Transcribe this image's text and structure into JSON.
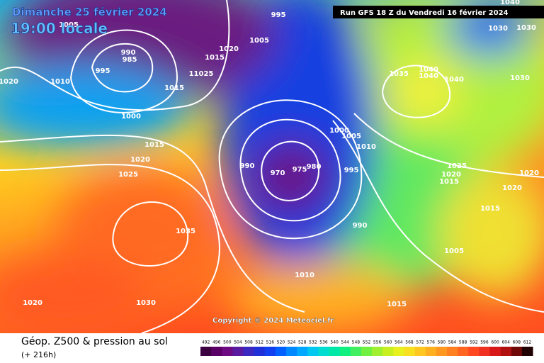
{
  "header": {
    "date": "Dimanche 25 février 2024",
    "time": "19:00 locale",
    "run": "Run GFS 18 Z du Vendredi 16 février 2024"
  },
  "isobar_labels": [
    "1005",
    "990",
    "985",
    "995",
    "1010",
    "1020",
    "1000",
    "1015",
    "1015",
    "1020",
    "11025",
    "1005",
    "995",
    "1040",
    "1030",
    "1030",
    "1035",
    "1040",
    "1040",
    "1040",
    "1030",
    "1015",
    "1020",
    "1025",
    "990",
    "970",
    "975",
    "980",
    "1000",
    "1005",
    "1010",
    "995",
    "1025",
    "1020",
    "1015",
    "1020",
    "1020",
    "1015",
    "990",
    "1035",
    "1005",
    "1010",
    "1020",
    "1030",
    "1015"
  ],
  "copyright": "Copyright © 2024 Meteociel.fr",
  "footer": {
    "title": "Géop. Z500 & pression au sol",
    "lead": "(+ 216h)"
  },
  "legend": {
    "labels": [
      "492",
      "496",
      "500",
      "504",
      "508",
      "512",
      "516",
      "520",
      "524",
      "528",
      "532",
      "536",
      "540",
      "544",
      "548",
      "552",
      "556",
      "560",
      "564",
      "568",
      "572",
      "576",
      "580",
      "584",
      "588",
      "592",
      "596",
      "600",
      "604",
      "608",
      "612"
    ],
    "colors": [
      "#3c0040",
      "#5a0066",
      "#6e0a82",
      "#5a1aa0",
      "#3a28c0",
      "#2030d8",
      "#1040f0",
      "#0060ff",
      "#0088ff",
      "#00a8ff",
      "#00c8f0",
      "#00dcd0",
      "#00e8a8",
      "#10f080",
      "#40f060",
      "#70f040",
      "#a0f030",
      "#c8f020",
      "#e8f020",
      "#f8e020",
      "#ffc820",
      "#ffb020",
      "#ff9820",
      "#ff8020",
      "#ff6420",
      "#ff4820",
      "#f03020",
      "#d81818",
      "#b01010",
      "#700808",
      "#200000"
    ]
  }
}
